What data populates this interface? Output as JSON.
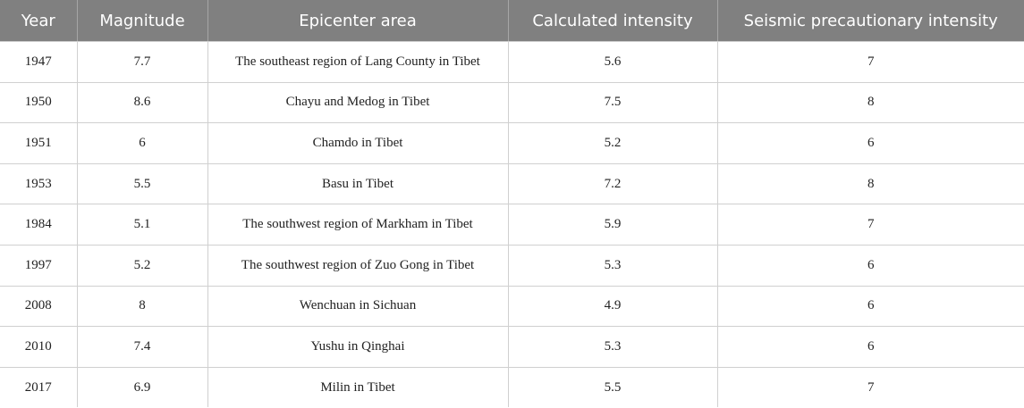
{
  "table": {
    "header": [
      "Year",
      "Magnitude",
      "Epicenter area",
      "Calculated intensity",
      "Seismic precautionary intensity"
    ],
    "rows": [
      [
        1947,
        7.7,
        "The southeast region of Lang County in Tibet",
        5.6,
        7
      ],
      [
        1950,
        8.6,
        "Chayu and Medog in Tibet",
        7.5,
        8
      ],
      [
        1951,
        6,
        "Chamdo in Tibet",
        5.2,
        6
      ],
      [
        1953,
        5.5,
        "Basu in Tibet",
        7.2,
        8
      ],
      [
        1984,
        5.1,
        "The southwest region of Markham in Tibet",
        5.9,
        7
      ],
      [
        1997,
        5.2,
        "The southwest region of Zuo Gong in Tibet",
        5.3,
        6
      ],
      [
        2008,
        8,
        "Wenchuan in Sichuan",
        4.9,
        6
      ],
      [
        2010,
        7.4,
        "Yushu in Qinghai",
        5.3,
        6
      ],
      [
        2017,
        6.9,
        "Milin in Tibet",
        5.5,
        7
      ]
    ]
  }
}
